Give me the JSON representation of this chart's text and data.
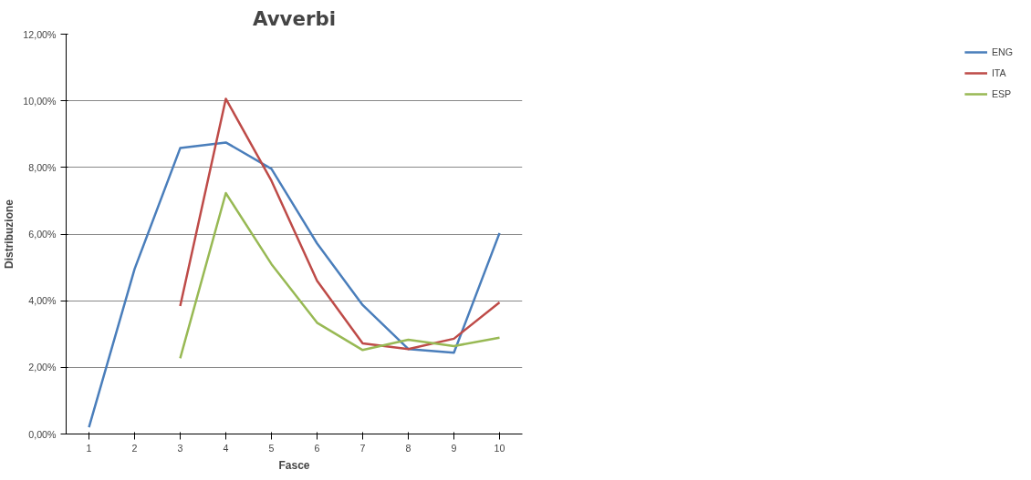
{
  "chart_data": {
    "type": "line",
    "title": "Avverbi",
    "xlabel": "Fasce",
    "ylabel": "Distribuzione",
    "categories": [
      "1",
      "2",
      "3",
      "4",
      "5",
      "6",
      "7",
      "8",
      "9",
      "10"
    ],
    "series": [
      {
        "name": "ENG",
        "color": "#4a7ebb",
        "values": [
          0.2,
          4.95,
          8.58,
          8.75,
          7.96,
          5.72,
          3.87,
          2.55,
          2.44,
          6.03
        ]
      },
      {
        "name": "ITA",
        "color": "#be4b48",
        "values": [
          null,
          null,
          3.84,
          10.06,
          7.6,
          4.6,
          2.72,
          2.55,
          2.86,
          3.95
        ]
      },
      {
        "name": "ESP",
        "color": "#98b954",
        "values": [
          null,
          null,
          2.27,
          7.23,
          5.1,
          3.34,
          2.52,
          2.83,
          2.64,
          2.89
        ]
      }
    ],
    "ylim": [
      0,
      12
    ],
    "yticks": [
      {
        "value": 0,
        "label": "0,00%"
      },
      {
        "value": 2,
        "label": "2,00%"
      },
      {
        "value": 4,
        "label": "4,00%"
      },
      {
        "value": 6,
        "label": "6,00%"
      },
      {
        "value": 8,
        "label": "8,00%"
      },
      {
        "value": 10,
        "label": "10,00%"
      },
      {
        "value": 12,
        "label": "12,00%"
      }
    ],
    "grid": "y",
    "legend": "right",
    "marker": "none",
    "line_style": "solid"
  }
}
